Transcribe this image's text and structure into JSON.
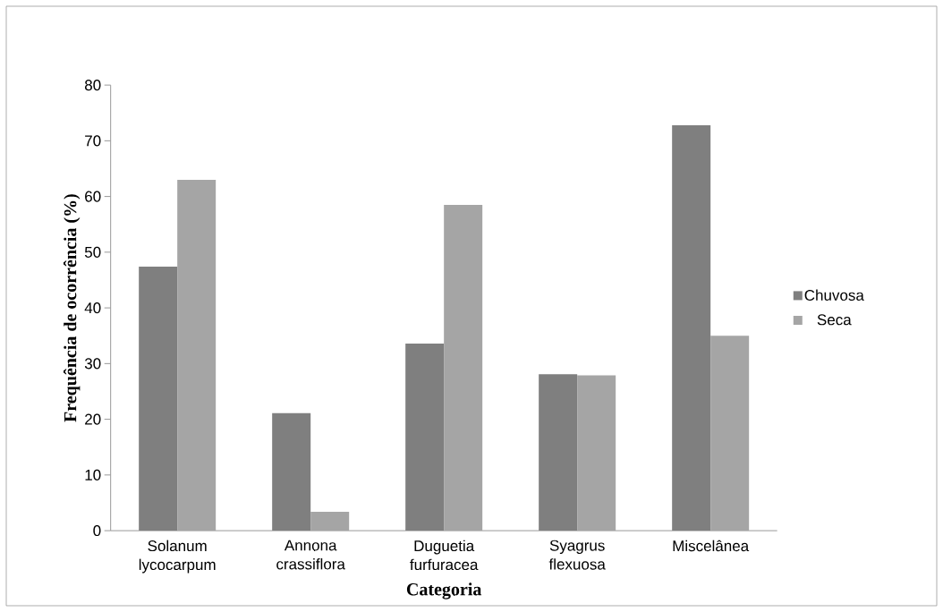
{
  "chart_data": {
    "type": "bar",
    "xlabel": "Categoria",
    "ylabel": "Frequência de ocorrência (%)",
    "categories": [
      "Solanum lycocarpum",
      "Annona crassiflora",
      "Duguetia furfuracea",
      "Syagrus flexuosa",
      "Miscelânea"
    ],
    "series": [
      {
        "name": "Chuvosa",
        "color": "#7f7f7f",
        "values": [
          47.4,
          21.1,
          33.6,
          28.1,
          72.8
        ]
      },
      {
        "name": "Seca",
        "color": "#a5a5a5",
        "values": [
          63.0,
          3.4,
          58.5,
          27.9,
          35.0
        ]
      }
    ],
    "ylim": [
      0,
      80
    ],
    "yticks": [
      0,
      10,
      20,
      30,
      40,
      50,
      60,
      70,
      80
    ],
    "legend": "right"
  }
}
